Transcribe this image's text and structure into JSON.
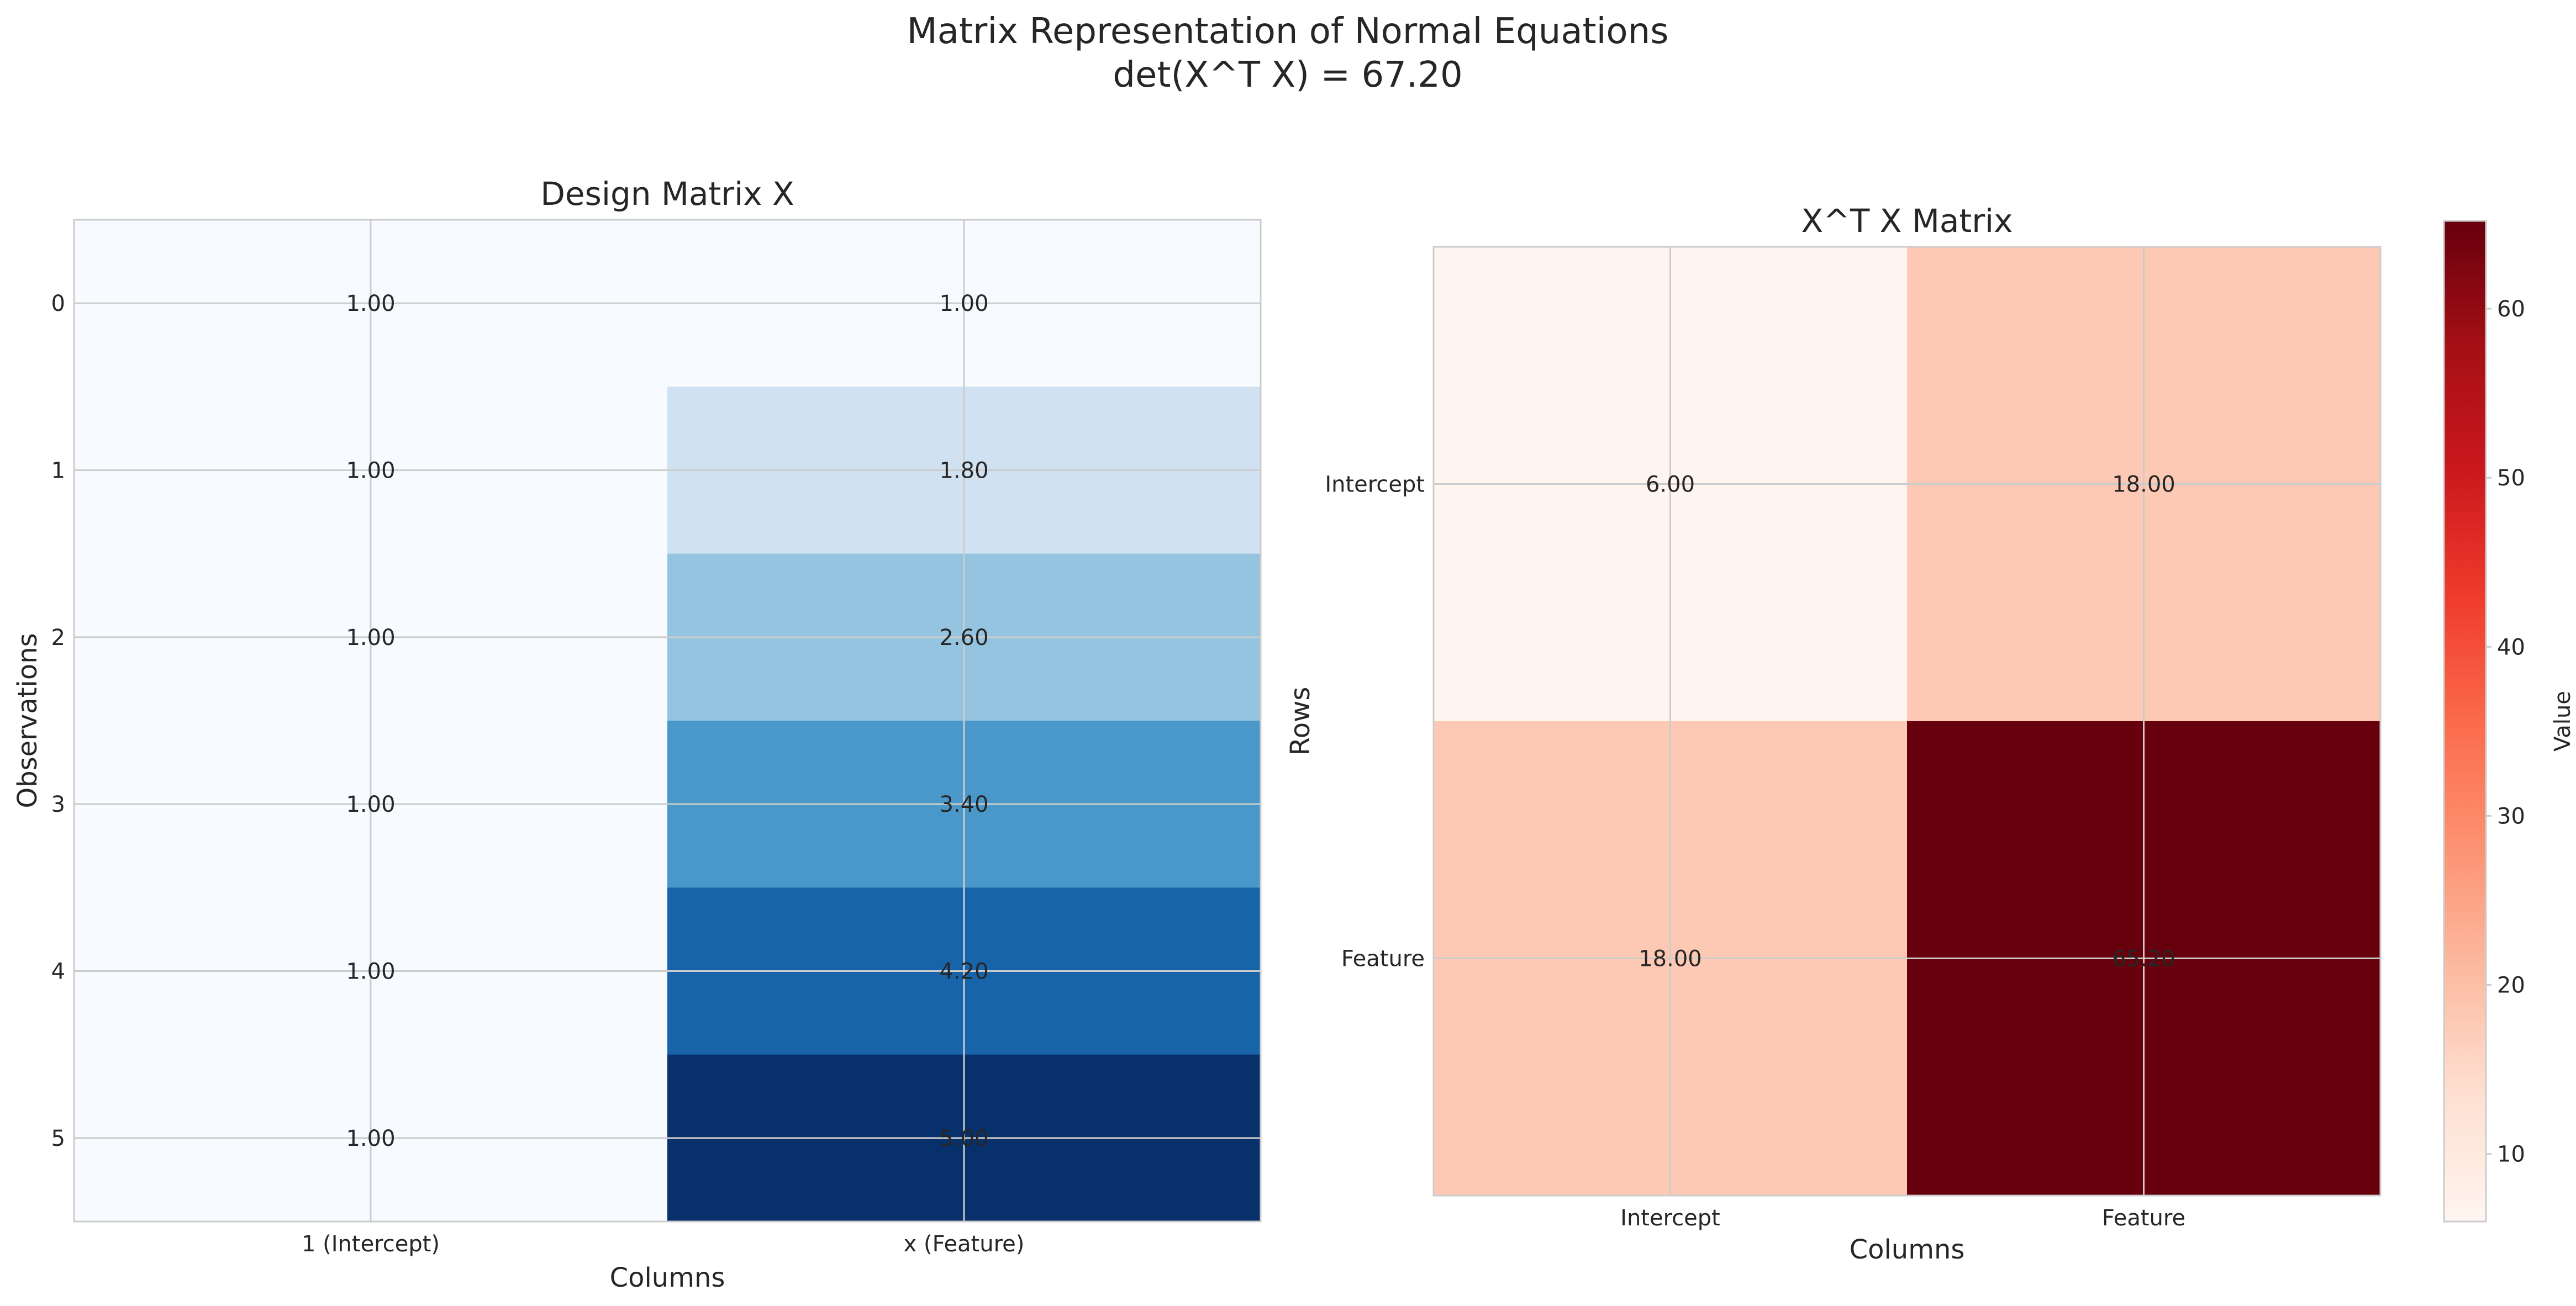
{
  "figure": {
    "suptitle_line1": "Matrix Representation of Normal Equations",
    "suptitle_line2": "det(X^T X) = 67.20"
  },
  "chart_data": [
    {
      "type": "heatmap",
      "title": "Design Matrix X",
      "xlabel": "Columns",
      "ylabel": "Observations",
      "x_tick_labels": [
        "1 (Intercept)",
        "x (Feature)"
      ],
      "y_tick_labels": [
        "0",
        "1",
        "2",
        "3",
        "4",
        "5"
      ],
      "colormap": "Blues",
      "color_range": [
        1.0,
        5.0
      ],
      "values": [
        [
          1.0,
          1.0
        ],
        [
          1.0,
          1.8
        ],
        [
          1.0,
          2.6
        ],
        [
          1.0,
          3.4
        ],
        [
          1.0,
          4.2
        ],
        [
          1.0,
          5.0
        ]
      ],
      "cell_labels": [
        [
          "1.00",
          "1.00"
        ],
        [
          "1.00",
          "1.80"
        ],
        [
          "1.00",
          "2.60"
        ],
        [
          "1.00",
          "3.40"
        ],
        [
          "1.00",
          "4.20"
        ],
        [
          "1.00",
          "5.00"
        ]
      ],
      "grid": true,
      "colorbar": false
    },
    {
      "type": "heatmap",
      "title": "X^T X Matrix",
      "xlabel": "Columns",
      "ylabel": "Rows",
      "x_tick_labels": [
        "Intercept",
        "Feature"
      ],
      "y_tick_labels": [
        "Intercept",
        "Feature"
      ],
      "colormap": "Reds",
      "color_range": [
        6.0,
        65.2
      ],
      "values": [
        [
          6.0,
          18.0
        ],
        [
          18.0,
          65.2
        ]
      ],
      "cell_labels": [
        [
          "6.00",
          "18.00"
        ],
        [
          "18.00",
          "65.20"
        ]
      ],
      "grid": true,
      "colorbar": true,
      "colorbar_label": "Value",
      "colorbar_ticks": [
        10,
        20,
        30,
        40,
        50,
        60
      ]
    }
  ]
}
